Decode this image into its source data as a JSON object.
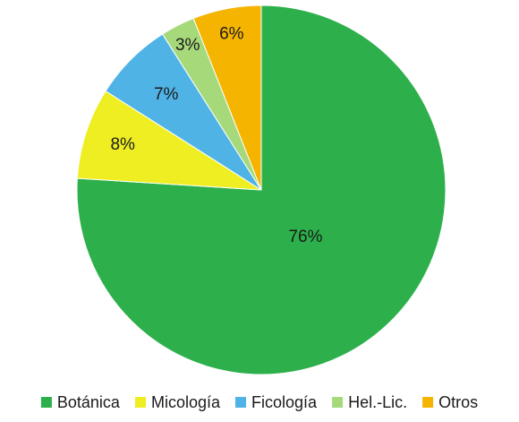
{
  "chart_data": {
    "type": "pie",
    "start": "top",
    "direction": "clockwise",
    "legend_position": "bottom",
    "slices": [
      {
        "label": "Botánica",
        "value": 76,
        "text": "76%",
        "color": "#2db04b"
      },
      {
        "label": "Micología",
        "value": 8,
        "text": "8%",
        "color": "#eeee22"
      },
      {
        "label": "Ficología",
        "value": 7,
        "text": "7%",
        "color": "#4fb3e6"
      },
      {
        "label": "Hel.-Lic.",
        "value": 3,
        "text": "3%",
        "color": "#a6d97a"
      },
      {
        "label": "Otros",
        "value": 6,
        "text": "6%",
        "color": "#f5b400"
      }
    ]
  }
}
